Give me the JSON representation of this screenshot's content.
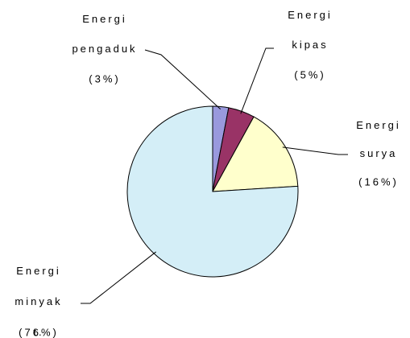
{
  "chart_data": {
    "type": "pie",
    "categories": [
      "Energi pengaduk",
      "Energi kipas",
      "Energi surya",
      "Energi minyak t."
    ],
    "values": [
      3,
      5,
      16,
      76
    ],
    "value_labels": [
      "(3%)",
      "(5%)",
      "(16%)",
      "(76%)"
    ],
    "colors": [
      "#9999dd",
      "#993366",
      "#ffffcc",
      "#d4eef7"
    ]
  }
}
